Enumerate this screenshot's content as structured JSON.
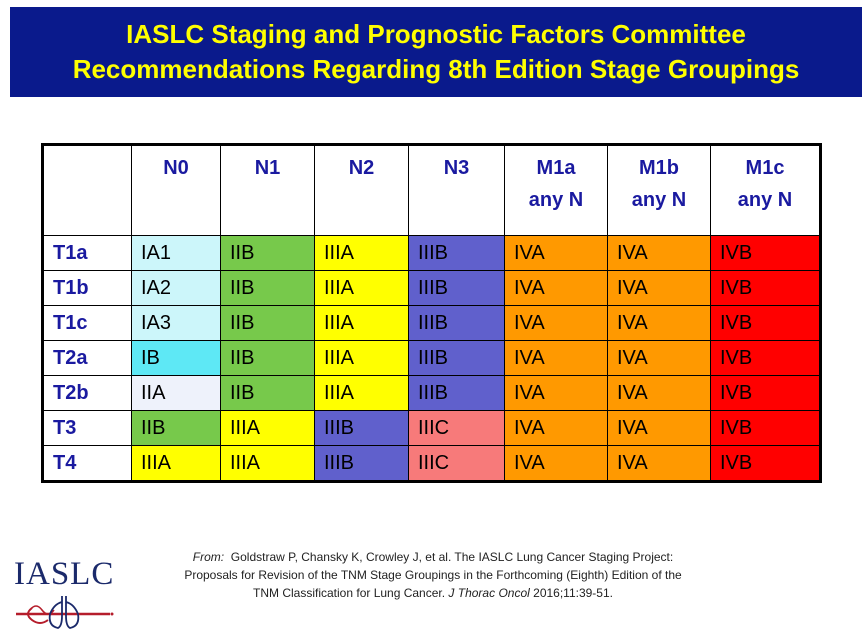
{
  "banner": {
    "line1": "IASLC Staging and Prognostic Factors Committee",
    "line2": "Recommendations Regarding 8th Edition Stage Groupings"
  },
  "table": {
    "columns": [
      {
        "line1": "N0",
        "line2": ""
      },
      {
        "line1": "N1",
        "line2": ""
      },
      {
        "line1": "N2",
        "line2": ""
      },
      {
        "line1": "N3",
        "line2": ""
      },
      {
        "line1": "M1a",
        "line2": "any N"
      },
      {
        "line1": "M1b",
        "line2": "any N"
      },
      {
        "line1": "M1c",
        "line2": "any N"
      }
    ],
    "rows": [
      {
        "label": "T1a",
        "cells": [
          "IA1",
          "IIB",
          "IIIA",
          "IIIB",
          "IVA",
          "IVA",
          "IVB"
        ]
      },
      {
        "label": "T1b",
        "cells": [
          "IA2",
          "IIB",
          "IIIA",
          "IIIB",
          "IVA",
          "IVA",
          "IVB"
        ]
      },
      {
        "label": "T1c",
        "cells": [
          "IA3",
          "IIB",
          "IIIA",
          "IIIB",
          "IVA",
          "IVA",
          "IVB"
        ]
      },
      {
        "label": "T2a",
        "cells": [
          "IB",
          "IIB",
          "IIIA",
          "IIIB",
          "IVA",
          "IVA",
          "IVB"
        ]
      },
      {
        "label": "T2b",
        "cells": [
          "IIA",
          "IIB",
          "IIIA",
          "IIIB",
          "IVA",
          "IVA",
          "IVB"
        ]
      },
      {
        "label": "T3",
        "cells": [
          "IIB",
          "IIIA",
          "IIIB",
          "IIIC",
          "IVA",
          "IVA",
          "IVB"
        ]
      },
      {
        "label": "T4",
        "cells": [
          "IIIA",
          "IIIA",
          "IIIB",
          "IIIC",
          "IVA",
          "IVA",
          "IVB"
        ]
      }
    ],
    "stage_colors": {
      "IA1": "#ccf6fa",
      "IA2": "#ccf6fa",
      "IA3": "#ccf6fa",
      "IB": "#5ee8f5",
      "IIA": "#eef2fb",
      "IIB": "#77c94b",
      "IIIA": "#ffff00",
      "IIIB": "#6060cc",
      "IIIC": "#f77a7a",
      "IVA": "#ff9900",
      "IVB": "#ff0000"
    }
  },
  "logo": {
    "text": "IASLC",
    "icon": "lungs-caduceus-icon"
  },
  "citation": {
    "from_label": "From:",
    "line1": "Goldstraw P, Chansky K, Crowley J, et al. The IASLC Lung Cancer Staging Project:",
    "line2": "Proposals for Revision of the TNM Stage Groupings in the Forthcoming (Eighth) Edition of the",
    "line3_pre": "TNM Classification for Lung Cancer.",
    "journal": "J Thorac Oncol",
    "line3_post": "2016;11:39-51."
  }
}
